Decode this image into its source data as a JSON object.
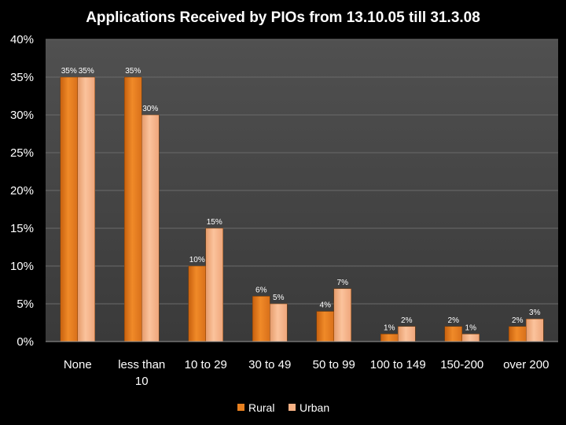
{
  "chart_data": {
    "type": "bar",
    "title": "Applications Received by PIOs from 13.10.05 till 31.3.08",
    "xlabel": "",
    "ylabel": "",
    "ylim": [
      0,
      40
    ],
    "yticks": [
      "0%",
      "5%",
      "10%",
      "15%",
      "20%",
      "25%",
      "30%",
      "35%",
      "40%"
    ],
    "categories": [
      [
        "None"
      ],
      [
        "less than",
        "10"
      ],
      [
        "10 to 29"
      ],
      [
        "30 to 49"
      ],
      [
        "50 to 99"
      ],
      [
        "100 to 149"
      ],
      [
        "150-200"
      ],
      [
        "over 200"
      ]
    ],
    "series": [
      {
        "name": "Rural",
        "values": [
          35,
          35,
          10,
          6,
          4,
          1,
          2,
          2
        ],
        "color": "#e8801f"
      },
      {
        "name": "Urban",
        "values": [
          35,
          30,
          15,
          5,
          7,
          2,
          1,
          3
        ],
        "color": "#f6b184"
      }
    ],
    "value_suffix": "%",
    "grid": true,
    "legend": "bottom"
  }
}
